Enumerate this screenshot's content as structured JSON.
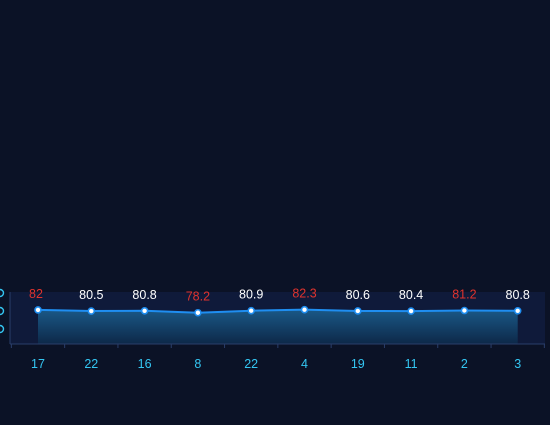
{
  "chart_data": {
    "type": "line",
    "categories": [
      "17",
      "22",
      "16",
      "8",
      "22",
      "4",
      "19",
      "11",
      "2",
      "3"
    ],
    "values": [
      82,
      80.5,
      80.8,
      78.2,
      80.9,
      82.3,
      80.6,
      80.4,
      81.2,
      80.8
    ],
    "data_labels": [
      "82",
      "80.5",
      "80.8",
      "78.2",
      "80.9",
      "82.3",
      "80.6",
      "80.4",
      "81.2",
      "80.8"
    ],
    "highlighted_indices": [
      0,
      3,
      5,
      8
    ],
    "ylim": [
      0,
      100
    ],
    "grid": false,
    "area_fill": true,
    "colors": {
      "background": "#0b1226",
      "plot_background": "#0f1a3a",
      "line": "#1f8ef1",
      "point_fill": "#ffffff",
      "point_stroke": "#1f8ef1",
      "area_top": "#1b5f8f",
      "area_bottom": "#0d2a4a",
      "label_normal": "#ffffff",
      "label_highlight": "#e0332e",
      "axis_tick_label": "#34c6f2",
      "axis_line": "#2a3e6a"
    }
  }
}
